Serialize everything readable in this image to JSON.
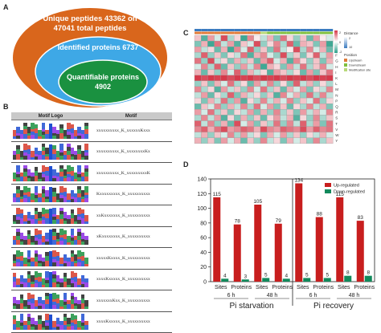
{
  "panels": {
    "a": "A",
    "b": "B",
    "c": "C",
    "d": "D"
  },
  "panel_a": {
    "outer": "Unique peptides 43362 on 47041 total peptides",
    "outer_line1": "Unique peptides 43362 on",
    "outer_line2": "47041 total peptides",
    "middle": "Identified proteins 6737",
    "inner_line1": "Quantifiable proteins",
    "inner_line2": "4902",
    "colors": {
      "outer": "#d9661c",
      "middle": "#3ea8e6",
      "inner": "#1a9140"
    }
  },
  "panel_b": {
    "headers": {
      "logo": "Motif Logo",
      "motif": "Motif"
    },
    "motifs": [
      "xxxxxxxxxx_K_xxxxxxKxxx",
      "xxxxxxxxxx_K_xxxxxxxxKx",
      "xxxxxxxxxx_K_xxxxxxxxxK",
      "Kxxxxxxxxx_K_xxxxxxxxxx",
      "xxKxxxxxxx_K_xxxxxxxxxx",
      "xKxxxxxxxx_K_xxxxxxxxxx",
      "xxxxxKxxxx_K_xxxxxxxxxx",
      "xxxxKxxxxx_K_xxxxxxxxxx",
      "xxxxxxxKxx_K_xxxxxxxxxx",
      "xxxxKxxxxx_K_xxxxxxxxxx"
    ],
    "logo_colors": [
      "#1f4fd1",
      "#d63a2a",
      "#1a9140",
      "#222222",
      "#8a2be2"
    ]
  },
  "panel_c": {
    "legend_distance_title": "Distance",
    "legend_distance_ticks": [
      "2",
      "10"
    ],
    "legend_position_title": "Position",
    "legend_positions": [
      {
        "label": "Upstream",
        "color": "#e07b39"
      },
      {
        "label": "Downstream",
        "color": "#7fbf3f"
      },
      {
        "label": "Modification site",
        "color": "#b8d97a"
      }
    ],
    "colorbar_ticks": [
      "2",
      "0",
      "-2"
    ],
    "row_labels": [
      "C",
      "D",
      "E",
      "F",
      "G",
      "H",
      "I",
      "K",
      "L",
      "M",
      "N",
      "P",
      "Q",
      "R",
      "S",
      "T",
      "V",
      "W",
      "Y"
    ],
    "column_count": 21,
    "matrix": [
      [
        0.3,
        -0.8,
        0.5,
        -0.2,
        0.9,
        -0.4,
        0.2,
        -0.9,
        0.6,
        0.1,
        -0.3,
        0.4,
        -0.6,
        0.7,
        0.2,
        -0.5,
        0.3,
        -0.7,
        0.5,
        0.1,
        -0.2
      ],
      [
        -0.6,
        0.4,
        -0.9,
        0.7,
        -0.3,
        0.5,
        -0.8,
        0.3,
        -0.2,
        0.9,
        -0.5,
        0.2,
        0.6,
        -0.4,
        0.8,
        -0.7,
        0.4,
        0.3,
        -0.6,
        0.5,
        -0.9
      ],
      [
        0.5,
        -0.3,
        0.2,
        -0.7,
        0.4,
        -0.9,
        0.6,
        -0.2,
        0.8,
        -0.5,
        0.3,
        -0.6,
        0.7,
        -0.3,
        0.1,
        0.9,
        -0.4,
        0.6,
        -0.2,
        0.4,
        -0.7
      ],
      [
        -0.4,
        0.8,
        -0.5,
        0.3,
        -0.6,
        0.2,
        -0.3,
        0.7,
        -0.8,
        0.4,
        0.6,
        -0.2,
        -0.5,
        0.9,
        -0.4,
        0.3,
        -0.6,
        0.2,
        0.8,
        -0.3,
        0.5
      ],
      [
        0.7,
        -0.5,
        0.9,
        -0.3,
        0.2,
        -0.6,
        0.4,
        -0.4,
        0.3,
        -0.7,
        0.5,
        0.8,
        -0.2,
        0.4,
        -0.8,
        0.6,
        0.2,
        -0.5,
        0.3,
        -0.6,
        0.4
      ],
      [
        -0.2,
        0.6,
        -0.4,
        0.8,
        -0.7,
        0.3,
        -0.5,
        0.5,
        -0.3,
        0.6,
        -0.9,
        0.4,
        0.2,
        -0.6,
        0.5,
        -0.3,
        0.7,
        -0.4,
        0.3,
        0.6,
        -0.2
      ],
      [
        0.4,
        -0.7,
        0.3,
        -0.5,
        0.6,
        -0.2,
        0.8,
        -0.6,
        0.4,
        -0.3,
        0.2,
        -0.8,
        0.5,
        0.3,
        -0.4,
        0.2,
        -0.7,
        0.5,
        -0.6,
        0.3,
        0.7
      ],
      [
        1.0,
        0.9,
        1.0,
        0.95,
        1.0,
        0.9,
        1.0,
        0.95,
        1.0,
        0.9,
        1.0,
        0.95,
        1.0,
        0.9,
        1.0,
        0.95,
        1.0,
        0.9,
        1.0,
        0.95,
        1.0
      ],
      [
        -0.5,
        0.3,
        -0.6,
        0.4,
        -0.2,
        0.7,
        -0.4,
        0.2,
        -0.7,
        0.5,
        -0.3,
        0.6,
        -0.5,
        0.2,
        -0.6,
        0.8,
        -0.3,
        0.4,
        -0.5,
        0.2,
        -0.4
      ],
      [
        0.6,
        -0.4,
        0.2,
        -0.8,
        0.5,
        -0.3,
        0.3,
        -0.5,
        0.6,
        -0.2,
        0.7,
        -0.4,
        0.3,
        -0.7,
        0.4,
        -0.2,
        0.5,
        -0.6,
        0.2,
        -0.3,
        0.6
      ],
      [
        -0.3,
        0.5,
        -0.7,
        0.2,
        -0.4,
        0.8,
        -0.6,
        0.4,
        -0.3,
        0.2,
        -0.5,
        0.3,
        -0.8,
        0.6,
        -0.2,
        0.4,
        -0.5,
        0.7,
        -0.4,
        0.6,
        -0.3
      ],
      [
        0.2,
        -0.6,
        0.4,
        -0.3,
        0.7,
        -0.5,
        0.5,
        -0.8,
        0.2,
        -0.4,
        0.6,
        -0.3,
        0.4,
        -0.2,
        0.6,
        -0.5,
        0.3,
        -0.2,
        0.7,
        -0.5,
        0.2
      ],
      [
        -0.7,
        0.3,
        -0.2,
        0.6,
        -0.5,
        0.4,
        -0.3,
        0.6,
        -0.4,
        0.7,
        -0.2,
        0.5,
        -0.6,
        0.3,
        -0.7,
        0.2,
        -0.4,
        0.6,
        -0.3,
        0.4,
        -0.6
      ],
      [
        0.5,
        -0.2,
        0.7,
        -0.4,
        0.3,
        -0.6,
        0.2,
        -0.3,
        0.5,
        -0.6,
        0.4,
        -0.5,
        0.6,
        -0.4,
        0.3,
        -0.6,
        0.5,
        -0.3,
        0.4,
        -0.2,
        0.6
      ],
      [
        -0.4,
        0.6,
        -0.3,
        0.5,
        -0.8,
        0.2,
        -0.6,
        0.4,
        -0.5,
        0.3,
        -0.7,
        0.2,
        0.5,
        -0.3,
        0.4,
        -0.8,
        0.2,
        -0.5,
        0.6,
        -0.4,
        0.3
      ],
      [
        0.8,
        -0.3,
        0.6,
        -0.5,
        0.4,
        -0.7,
        0.9,
        -0.2,
        0.5,
        -0.6,
        0.3,
        -0.4,
        0.7,
        -0.5,
        0.6,
        -0.3,
        0.8,
        -0.4,
        0.5,
        -0.6,
        0.7
      ],
      [
        0.6,
        0.8,
        0.4,
        0.7,
        0.9,
        0.5,
        0.6,
        0.8,
        0.7,
        0.4,
        0.9,
        0.6,
        0.5,
        0.8,
        0.7,
        0.6,
        0.9,
        0.5,
        0.8,
        0.6,
        0.7
      ],
      [
        -0.3,
        0.4,
        -0.5,
        0.3,
        -0.2,
        0.6,
        -0.4,
        0.5,
        -0.3,
        0.2,
        -0.6,
        0.4,
        -0.2,
        0.5,
        -0.4,
        0.3,
        -0.5,
        0.2,
        -0.3,
        0.4,
        -0.2
      ],
      [
        0.4,
        -0.5,
        0.3,
        -0.6,
        0.5,
        -0.2,
        0.4,
        -0.7,
        0.3,
        -0.5,
        0.6,
        -0.3,
        0.2,
        -0.6,
        0.4,
        -0.2,
        0.3,
        -0.5,
        0.6,
        -0.4,
        0.3
      ]
    ],
    "colors": {
      "high": "#d6394a",
      "mid": "#ffffff",
      "low": "#2a9e88",
      "header_bar": "#3a7bc0"
    }
  },
  "chart_data": {
    "type": "bar",
    "categories": [
      "Sites",
      "Proteins",
      "Sites",
      "Proteins",
      "Sites",
      "Proteins",
      "Sites",
      "Proteins"
    ],
    "group_labels": [
      "6 h",
      "48 h",
      "6 h",
      "48 h"
    ],
    "condition_labels": [
      "Pi starvation",
      "Pi recovery"
    ],
    "series": [
      {
        "name": "Up-regulated",
        "color": "#c81e1e",
        "values": [
          115,
          78,
          105,
          79,
          134,
          88,
          115,
          83
        ]
      },
      {
        "name": "Down-regulated",
        "color": "#128a5c",
        "values": [
          4,
          3,
          5,
          4,
          5,
          5,
          8,
          8
        ]
      }
    ],
    "yticks": [
      "0",
      "20",
      "40",
      "60",
      "80",
      "100",
      "120",
      "140"
    ],
    "ylim": [
      0,
      140
    ],
    "legend_position": "top-right",
    "grid": false
  }
}
